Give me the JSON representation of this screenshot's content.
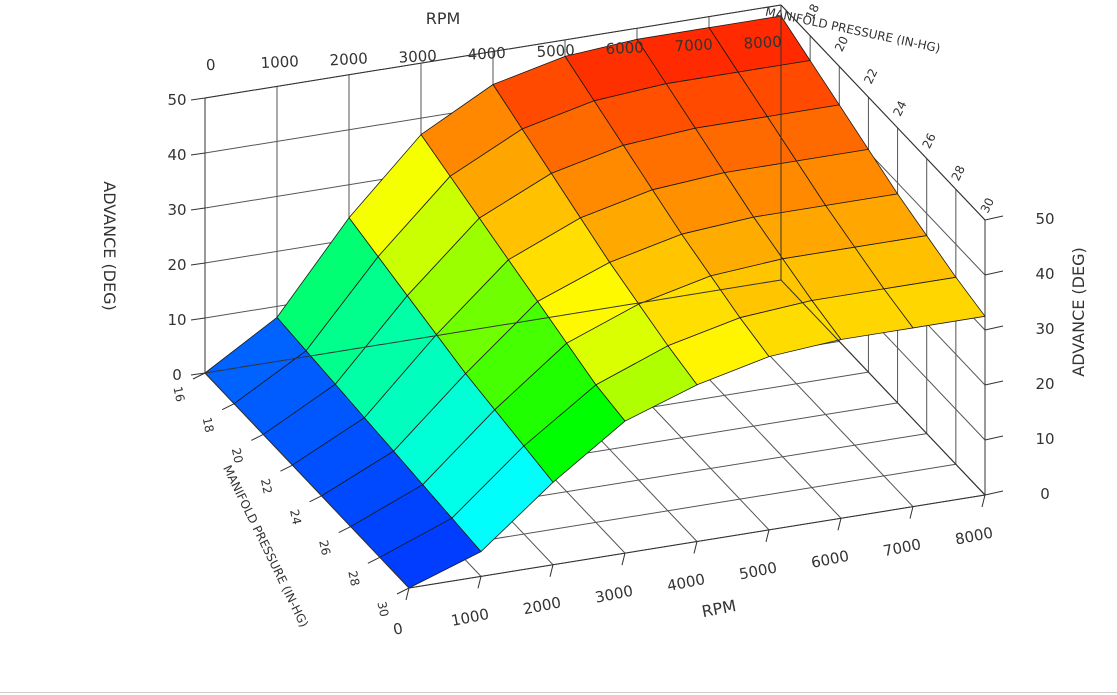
{
  "chart_data": {
    "type": "surface3d",
    "title": "",
    "rpm_axis": {
      "label": "RPM",
      "ticks": [
        0,
        1000,
        2000,
        3000,
        4000,
        5000,
        6000,
        7000,
        8000
      ],
      "range": [
        0,
        8000
      ]
    },
    "map_axis": {
      "label": "MANIFOLD PRESSURE (IN-HG)",
      "ticks": [
        16,
        18,
        20,
        22,
        24,
        26,
        28,
        30
      ],
      "range": [
        16,
        30
      ]
    },
    "advance_axis": {
      "label": "ADVANCE (DEG)",
      "ticks": [
        0,
        10,
        20,
        30,
        40,
        50
      ],
      "range": [
        0,
        50
      ]
    },
    "grid": true,
    "surface": {
      "rpm": [
        0,
        1000,
        2000,
        3000,
        4000,
        5000,
        6000,
        7000,
        8000
      ],
      "map": [
        16,
        18,
        20,
        22,
        24,
        26,
        28,
        30
      ],
      "advance": [
        [
          0,
          8,
          24,
          37,
          44,
          47,
          48,
          48,
          48
        ],
        [
          0,
          7.5,
          22.5,
          35,
          41.5,
          44.5,
          45.5,
          45.5,
          45.5
        ],
        [
          0,
          7,
          21,
          33,
          39,
          42,
          43,
          43,
          43
        ],
        [
          0,
          6.5,
          19.5,
          31,
          36.5,
          39.5,
          40.5,
          40.5,
          40.5
        ],
        [
          0,
          6,
          18,
          29,
          34,
          37,
          38,
          38,
          38
        ],
        [
          0,
          5.5,
          17,
          27,
          32,
          35,
          36,
          36,
          36
        ],
        [
          0,
          5,
          16,
          25,
          30,
          33,
          34,
          34,
          34
        ],
        [
          0,
          4.5,
          15,
          24,
          28.5,
          31.5,
          32.5,
          32.5,
          32.5
        ]
      ]
    },
    "colormap": [
      "#0000ff",
      "#00ffff",
      "#00ff00",
      "#ffff00",
      "#ff8000",
      "#ff0000"
    ]
  }
}
